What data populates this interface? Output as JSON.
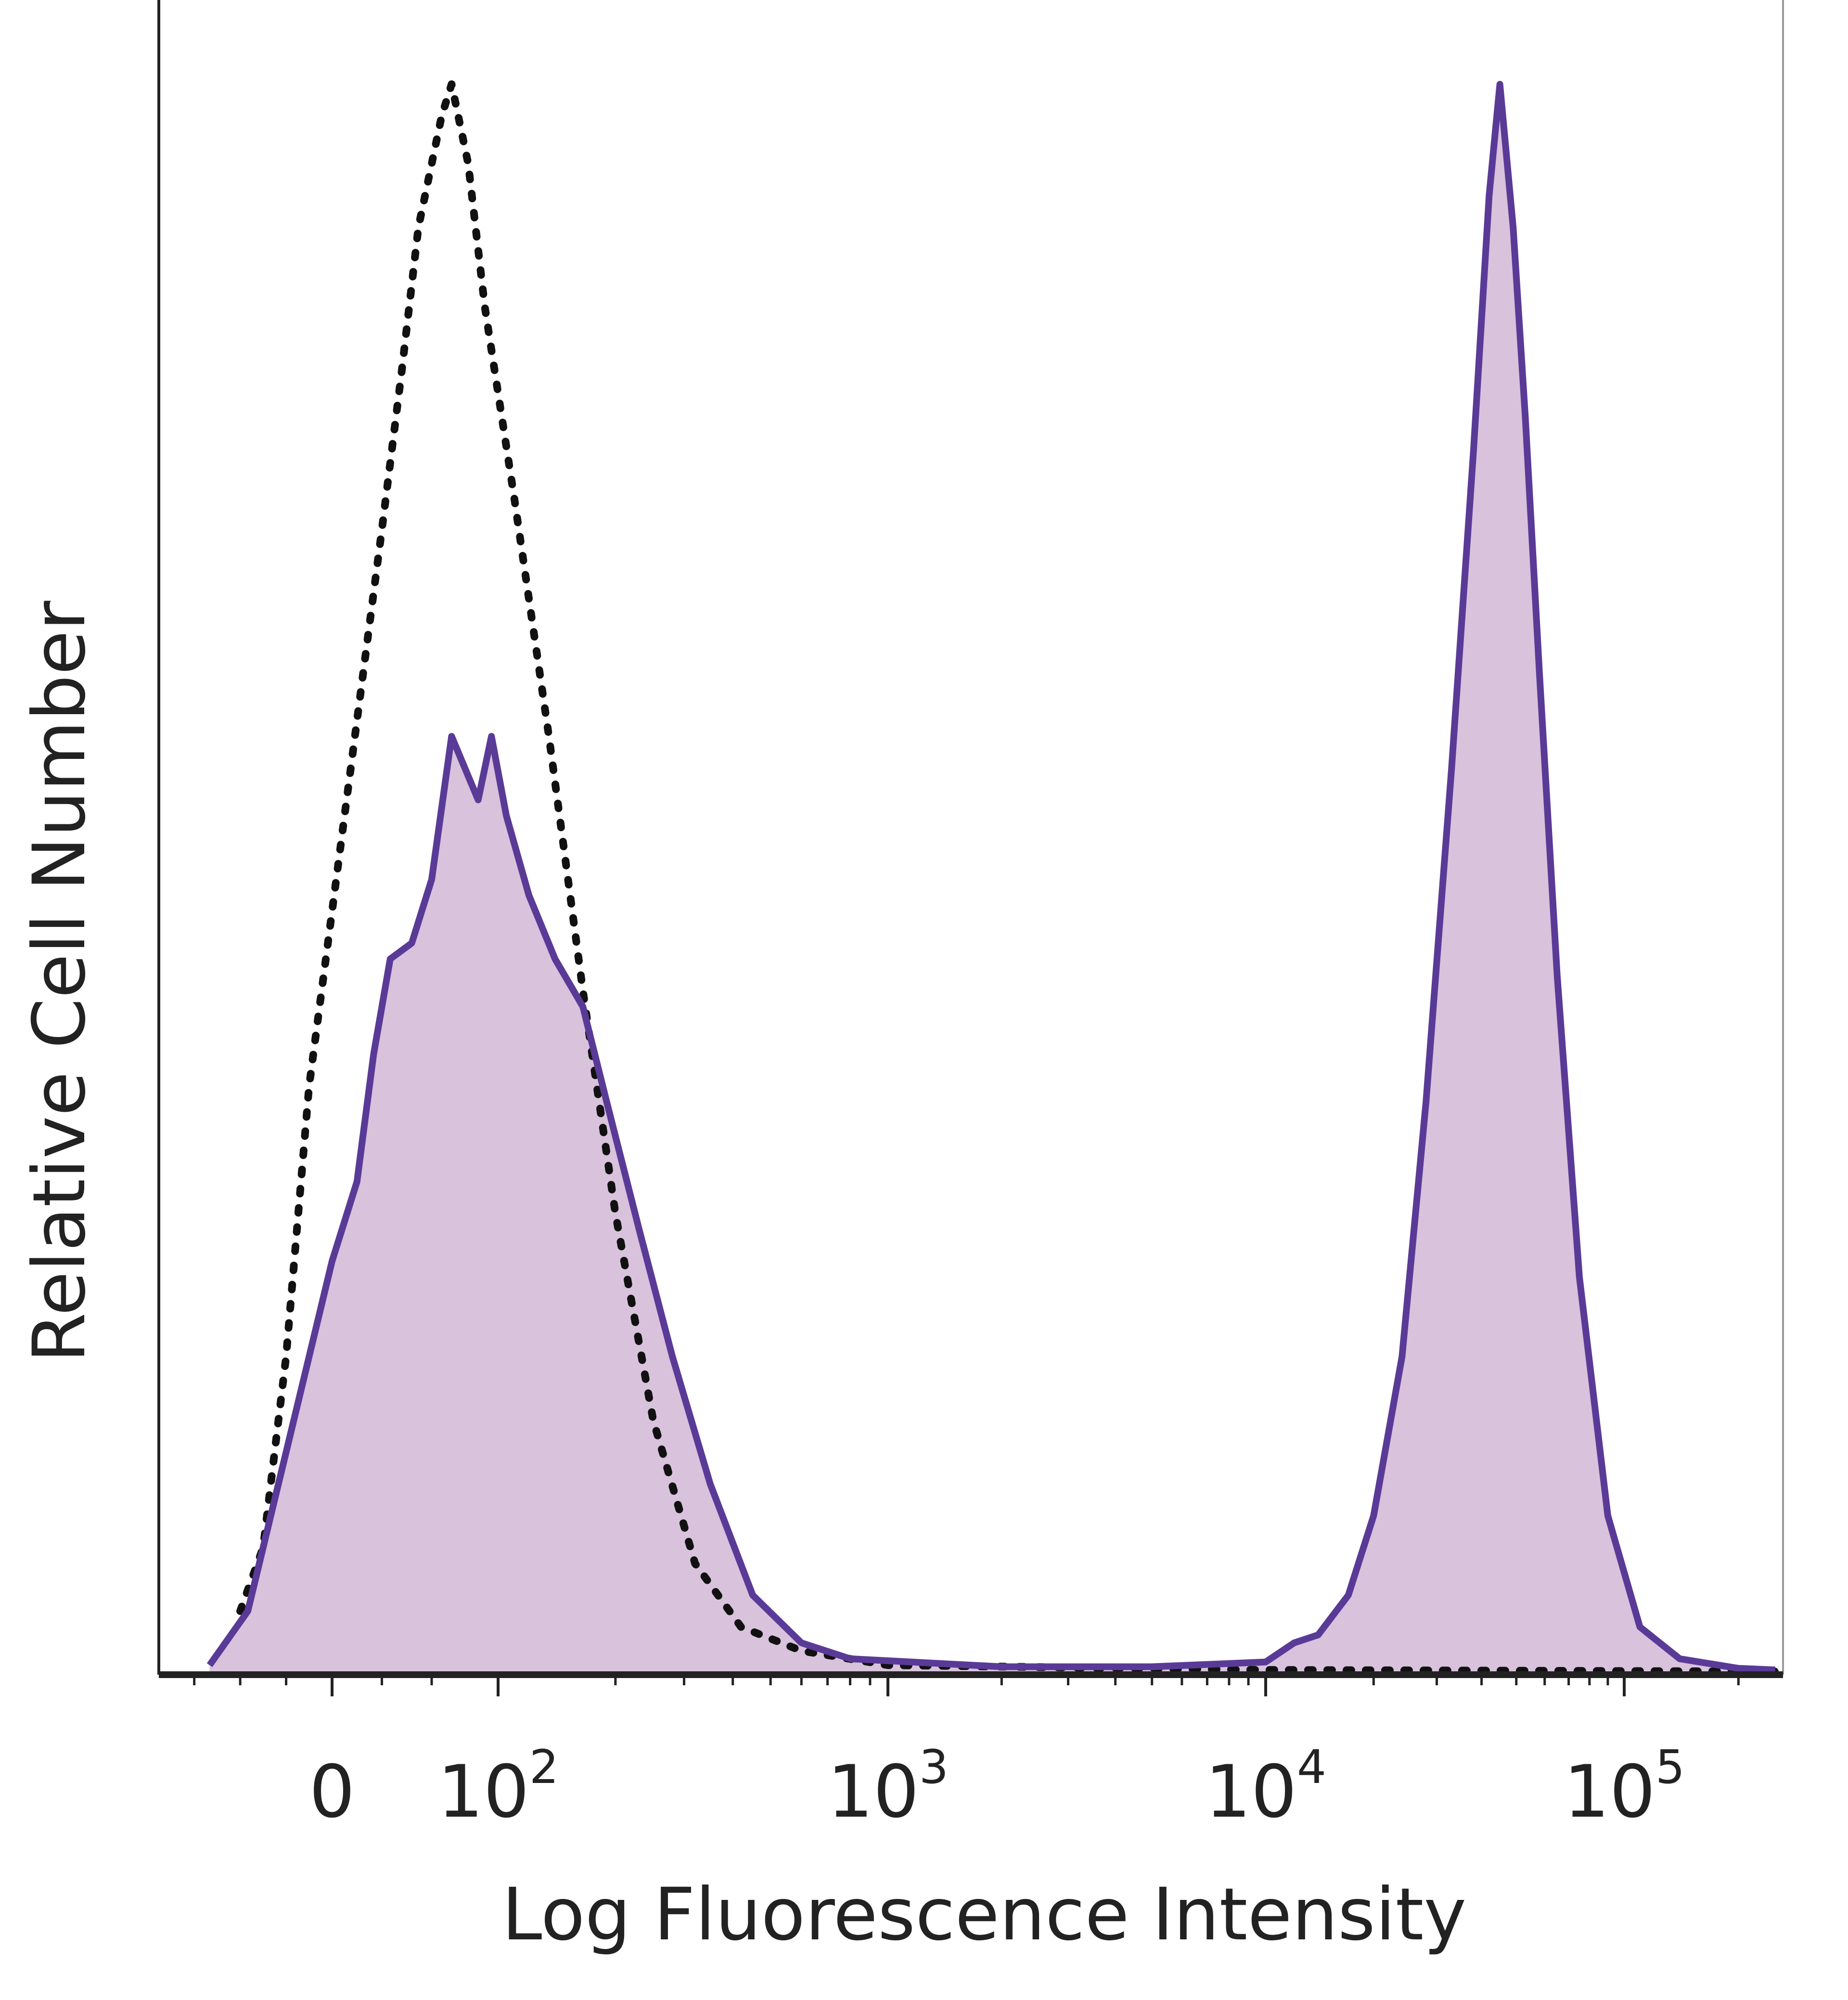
{
  "chart_data": {
    "type": "histogram",
    "title": "",
    "xlabel": "Log Fluorescence Intensity",
    "ylabel": "Relative Cell Number",
    "x_scale": "biexponential",
    "x_tick_labels": [
      {
        "base": "0",
        "exp": ""
      },
      {
        "base": "10",
        "exp": "2"
      },
      {
        "base": "10",
        "exp": "3"
      },
      {
        "base": "10",
        "exp": "4"
      },
      {
        "base": "10",
        "exp": "5"
      }
    ],
    "x_major_ticks": [
      0,
      100,
      1000,
      10000,
      100000
    ],
    "ylim": [
      0,
      100
    ],
    "grid": false,
    "legend": "none",
    "colors": {
      "stained_line": "#5a3a97",
      "stained_fill": "#d8c2dc",
      "control_line": "#111111",
      "axis": "#222222"
    },
    "series": [
      {
        "style": "dotted",
        "filled": false,
        "points": [
          [
            -60,
            4
          ],
          [
            -45,
            8
          ],
          [
            -30,
            20
          ],
          [
            -15,
            37
          ],
          [
            0,
            48
          ],
          [
            15,
            60
          ],
          [
            30,
            72
          ],
          [
            42,
            82
          ],
          [
            52,
            91
          ],
          [
            60,
            95
          ],
          [
            66,
            98
          ],
          [
            72,
            100
          ],
          [
            82,
            95
          ],
          [
            92,
            86
          ],
          [
            110,
            74
          ],
          [
            135,
            59
          ],
          [
            165,
            43
          ],
          [
            200,
            29
          ],
          [
            250,
            16
          ],
          [
            320,
            7
          ],
          [
            420,
            3
          ],
          [
            600,
            1.5
          ],
          [
            1000,
            0.6
          ],
          [
            10000,
            0.3
          ],
          [
            250000,
            0.2
          ]
        ]
      },
      {
        "style": "solid",
        "filled": true,
        "points": [
          [
            -80,
            0.6
          ],
          [
            -55,
            4
          ],
          [
            -40,
            10
          ],
          [
            -20,
            18
          ],
          [
            0,
            26
          ],
          [
            15,
            31
          ],
          [
            25,
            39
          ],
          [
            35,
            45
          ],
          [
            48,
            46
          ],
          [
            60,
            50
          ],
          [
            72,
            59
          ],
          [
            80,
            57
          ],
          [
            88,
            55
          ],
          [
            96,
            59
          ],
          [
            105,
            54
          ],
          [
            120,
            49
          ],
          [
            140,
            45
          ],
          [
            165,
            42
          ],
          [
            190,
            36
          ],
          [
            230,
            28
          ],
          [
            280,
            20
          ],
          [
            350,
            12
          ],
          [
            450,
            5
          ],
          [
            600,
            2
          ],
          [
            800,
            1
          ],
          [
            2000,
            0.5
          ],
          [
            5000,
            0.5
          ],
          [
            10000,
            0.8
          ],
          [
            12000,
            2
          ],
          [
            14000,
            2.5
          ],
          [
            17000,
            5
          ],
          [
            20000,
            10
          ],
          [
            24000,
            20
          ],
          [
            28000,
            36
          ],
          [
            33000,
            57
          ],
          [
            38000,
            77
          ],
          [
            42000,
            93
          ],
          [
            45000,
            100
          ],
          [
            49000,
            91
          ],
          [
            53000,
            79
          ],
          [
            58000,
            63
          ],
          [
            65000,
            44
          ],
          [
            75000,
            25
          ],
          [
            90000,
            10
          ],
          [
            110000,
            3
          ],
          [
            140000,
            1
          ],
          [
            200000,
            0.4
          ],
          [
            250000,
            0.3
          ]
        ]
      }
    ]
  }
}
